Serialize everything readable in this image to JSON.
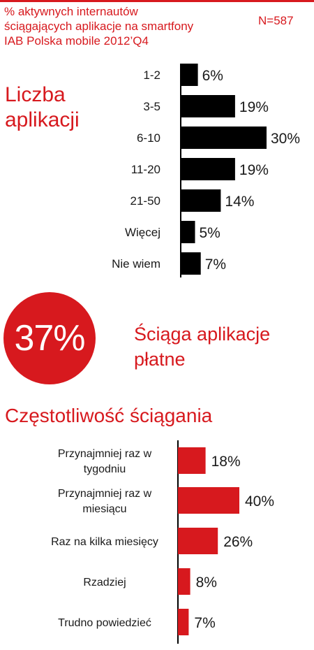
{
  "header": {
    "subtitle_lines": [
      "% aktywnych internautów",
      "ściągających aplikacje na smartfony",
      "IAB Polska mobile 2012’Q4"
    ],
    "n_label": "N=587"
  },
  "section1": {
    "title_lines": [
      "Liczba",
      "aplikacji"
    ]
  },
  "paid": {
    "value_label": "37%",
    "label_lines": [
      "Ściąga aplikacje",
      "płatne"
    ]
  },
  "section2": {
    "title": "Częstotliwość ściągania"
  },
  "colors": {
    "accent": "#d7191e",
    "black_bar": "#000000",
    "text": "#1a1a1a"
  },
  "chart_data": [
    {
      "type": "bar",
      "orientation": "horizontal",
      "title": "Liczba aplikacji",
      "categories": [
        "1-2",
        "3-5",
        "6-10",
        "11-20",
        "21-50",
        "Więcej",
        "Nie wiem"
      ],
      "values": [
        6,
        19,
        30,
        19,
        14,
        5,
        7
      ],
      "value_labels": [
        "6%",
        "19%",
        "30%",
        "19%",
        "14%",
        "5%",
        "7%"
      ],
      "unit": "%",
      "bar_color": "#000000",
      "xlim": [
        0,
        30
      ]
    },
    {
      "type": "bar",
      "orientation": "horizontal",
      "title": "Częstotliwość ściągania",
      "categories": [
        [
          "Przynajmniej raz w",
          "tygodniu"
        ],
        [
          "Przynajmniej raz w",
          "miesiącu"
        ],
        [
          "Raz na kilka miesięcy"
        ],
        [
          "Rzadziej"
        ],
        [
          "Trudno powiedzieć"
        ]
      ],
      "values": [
        18,
        40,
        26,
        8,
        7
      ],
      "value_labels": [
        "18%",
        "40%",
        "26%",
        "8%",
        "7%"
      ],
      "unit": "%",
      "bar_color": "#d7191e",
      "xlim": [
        0,
        40
      ]
    }
  ]
}
